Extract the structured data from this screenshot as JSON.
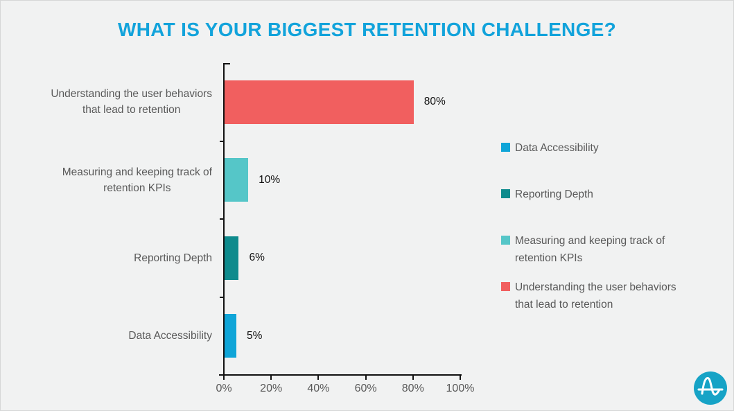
{
  "title": "WHAT IS YOUR BIGGEST RETENTION CHALLENGE?",
  "chart_data": {
    "type": "bar",
    "orientation": "horizontal",
    "title": "WHAT IS YOUR BIGGEST RETENTION CHALLENGE?",
    "categories": [
      "Understanding the user behaviors\nthat lead to retention",
      "Measuring and keeping track of\nretention KPIs",
      "Reporting Depth",
      "Data Accessibility"
    ],
    "values": [
      80,
      10,
      6,
      5
    ],
    "value_labels": [
      "80%",
      "10%",
      "6%",
      "5%"
    ],
    "bar_colors": [
      "#F15F5F",
      "#55C6C8",
      "#0E8B8D",
      "#0FA5D8"
    ],
    "xlabel": "",
    "ylabel": "",
    "xlim": [
      0,
      100
    ],
    "x_ticks": [
      "0%",
      "20%",
      "40%",
      "60%",
      "80%",
      "100%"
    ],
    "grid": false,
    "legend_position": "right"
  },
  "legend": {
    "items": [
      {
        "label": "Data Accessibility",
        "color": "#0FA5D8"
      },
      {
        "label": "Reporting Depth",
        "color": "#0E8B8D"
      },
      {
        "label": "Measuring and keeping track of\nretention KPIs",
        "color": "#55C6C8"
      },
      {
        "label": "Understanding the user behaviors\nthat lead to retention",
        "color": "#F15F5F"
      }
    ]
  },
  "branding": {
    "logo": "amplitude-logo",
    "logo_color": "#16A3C6"
  },
  "colors": {
    "title": "#12A3DB",
    "label_text": "#595959",
    "value_text": "#111111",
    "axis": "#111111",
    "background": "#F1F2F2"
  }
}
